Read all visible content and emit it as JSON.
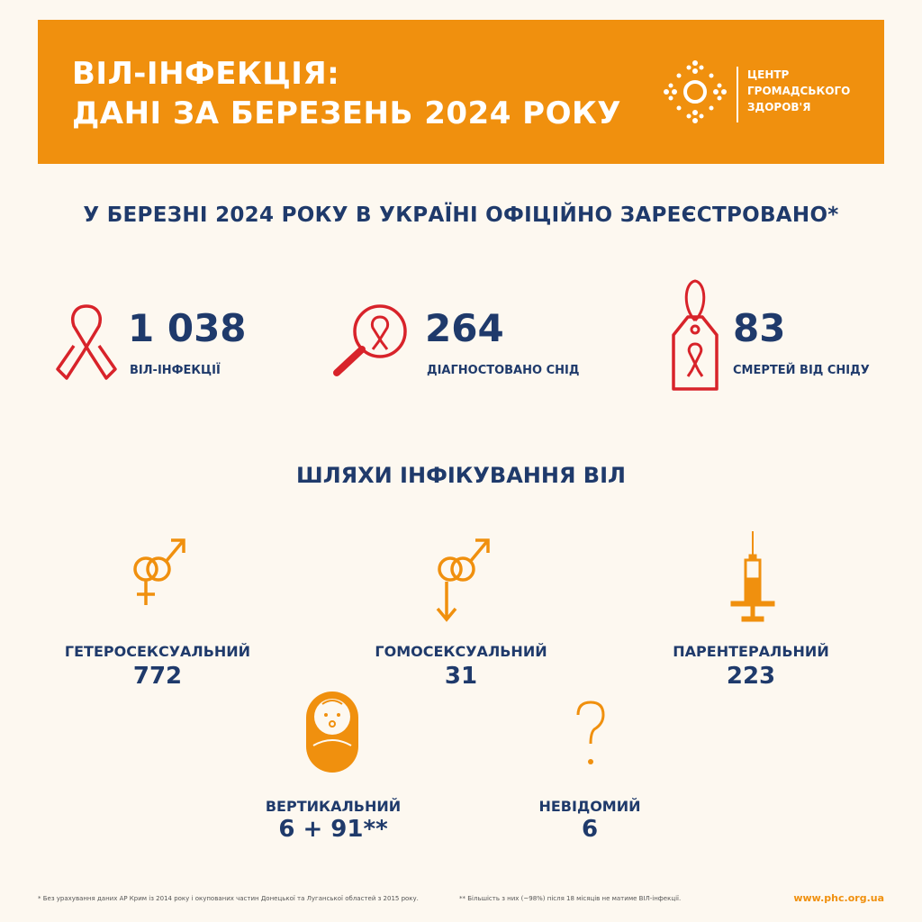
{
  "banner": {
    "title_line1": "ВІЛ-ІНФЕКЦІЯ:",
    "title_line2": "ДАНІ ЗА БЕРЕЗЕНЬ 2024 РОКУ",
    "logo_line1": "ЦЕНТР",
    "logo_line2": "ГРОМАДСЬКОГО",
    "logo_line3": "ЗДОРОВ'Я"
  },
  "headline": {
    "part1": "У ",
    "highlight": "БЕРЕЗНІ 2024 РОКУ",
    "part2": " В УКРАЇНІ ОФІЦІЙНО ЗАРЕЄСТРОВАНО*"
  },
  "stats": [
    {
      "value": "1 038",
      "label": "ВІЛ-ІНФЕКЦІЇ",
      "icon": "red-ribbon-icon"
    },
    {
      "value": "264",
      "label": "ДІАГНОСТОВАНО СНІД",
      "icon": "magnifier-ribbon-icon"
    },
    {
      "value": "83",
      "label": "СМЕРТЕЙ ВІД СНІДУ",
      "icon": "tag-ribbon-icon"
    }
  ],
  "routes_title": "ШЛЯХИ ІНФІКУВАННЯ ВІЛ",
  "routes": [
    {
      "label": "ГЕТЕРОСЕКСУАЛЬНИЙ",
      "value": "772",
      "icon": "male-female-icon"
    },
    {
      "label": "ГОМОСЕКСУАЛЬНИЙ",
      "value": "31",
      "icon": "male-male-icon"
    },
    {
      "label": "ПАРЕНТЕРАЛЬНИЙ",
      "value": "223",
      "icon": "syringe-icon"
    },
    {
      "label": "ВЕРТИКАЛЬНИЙ",
      "value": "6 + 91**",
      "icon": "baby-icon"
    },
    {
      "label": "НЕВІДОМИЙ",
      "value": "6",
      "icon": "question-icon"
    }
  ],
  "footnotes": {
    "note1": "* Без урахування даних АР Крим із 2014 року і окупованих частин Донецької та Луганської областей з 2015 року.",
    "note2": "** Більшість з них (~98%) після 18 місяців не матиме ВІЛ-інфекції.",
    "site": "www.phc.org.ua"
  },
  "colors": {
    "orange": "#f0900e",
    "navy": "#1f3a6b",
    "red": "#d8232a",
    "background": "#fdf8f0"
  }
}
